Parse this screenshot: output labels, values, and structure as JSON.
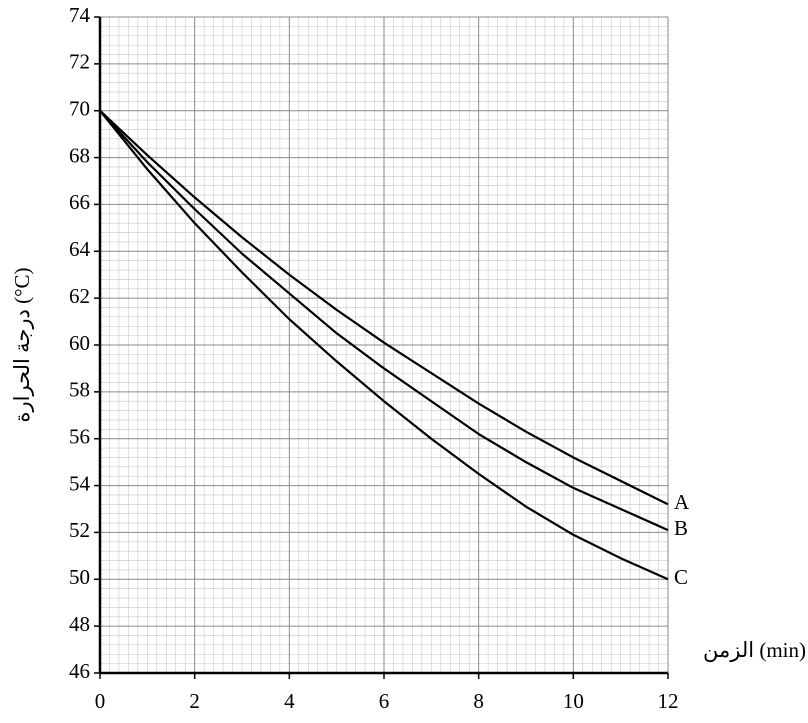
{
  "chart_data": {
    "type": "line",
    "x_label": "الزمن (min)",
    "y_label": "درجة الحرارة (°C)",
    "x": [
      0,
      1,
      2,
      3,
      4,
      5,
      6,
      7,
      8,
      9,
      10,
      11,
      12
    ],
    "series": [
      {
        "name": "A",
        "color": "#000000",
        "values": [
          70,
          68.1,
          66.3,
          64.6,
          63.0,
          61.5,
          60.1,
          58.8,
          57.5,
          56.3,
          55.2,
          54.2,
          53.2
        ]
      },
      {
        "name": "B",
        "color": "#000000",
        "values": [
          70,
          67.8,
          65.8,
          63.9,
          62.2,
          60.5,
          59.0,
          57.6,
          56.2,
          55.0,
          53.9,
          53.0,
          52.1
        ]
      },
      {
        "name": "C",
        "color": "#000000",
        "values": [
          70,
          67.5,
          65.2,
          63.1,
          61.1,
          59.3,
          57.6,
          56.0,
          54.5,
          53.1,
          51.9,
          50.9,
          50.0
        ]
      }
    ],
    "xlim": [
      0,
      12
    ],
    "xticks": [
      0,
      2,
      4,
      6,
      8,
      10,
      12
    ],
    "ylim": [
      46,
      74
    ],
    "yticks": [
      46,
      48,
      50,
      52,
      54,
      56,
      58,
      60,
      62,
      64,
      66,
      68,
      70,
      72,
      74
    ],
    "grid": true
  }
}
